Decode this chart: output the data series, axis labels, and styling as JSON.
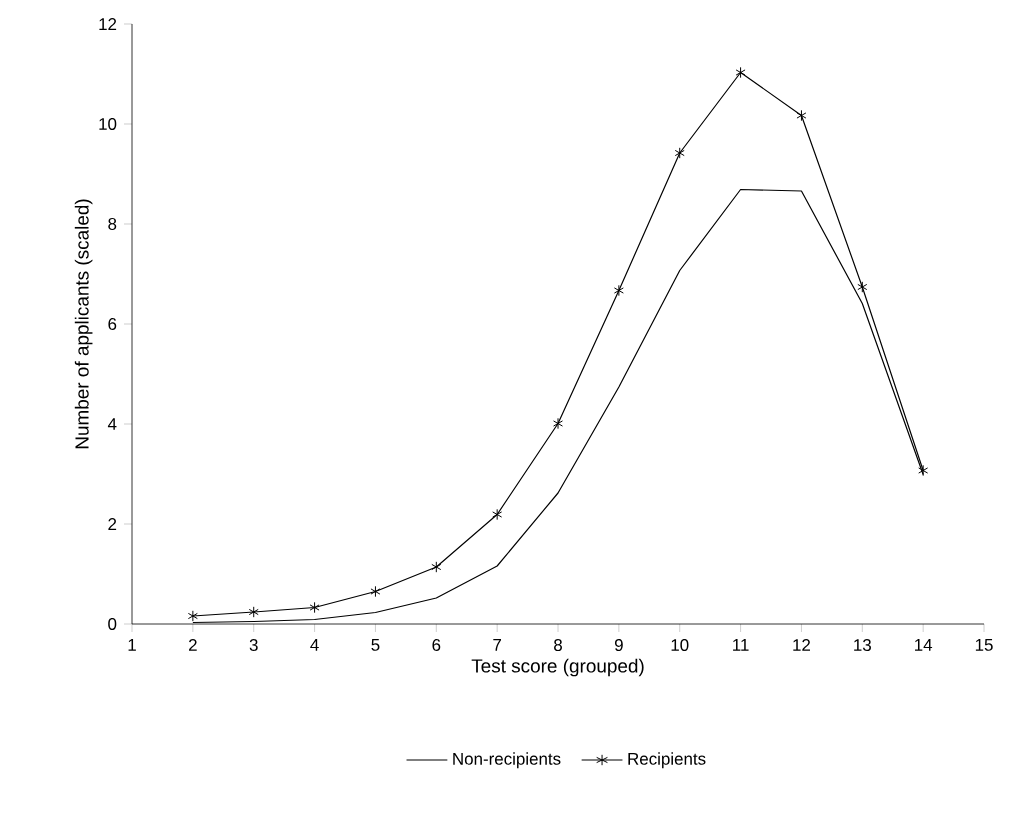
{
  "chart_data": {
    "type": "line",
    "xlabel": "Test score (grouped)",
    "ylabel": "Number of applicants (scaled)",
    "x": [
      2,
      3,
      4,
      5,
      6,
      7,
      8,
      9,
      10,
      11,
      12,
      13,
      14
    ],
    "series": [
      {
        "name": "Non-recipients",
        "color": "#000000",
        "marker": "none",
        "values": [
          0.03,
          0.05,
          0.09,
          0.23,
          0.52,
          1.16,
          2.62,
          4.74,
          7.07,
          8.69,
          8.66,
          6.41,
          2.99
        ]
      },
      {
        "name": "Recipients",
        "color": "#000000",
        "marker": "cross",
        "values": [
          0.16,
          0.24,
          0.33,
          0.65,
          1.14,
          2.19,
          4.01,
          6.67,
          9.42,
          11.03,
          10.17,
          6.74,
          3.07
        ]
      }
    ],
    "xlim": [
      1,
      15
    ],
    "xticks": [
      1,
      2,
      3,
      4,
      5,
      6,
      7,
      8,
      9,
      10,
      11,
      12,
      13,
      14,
      15
    ],
    "ylim": [
      0,
      12
    ],
    "yticks": [
      0,
      2,
      4,
      6,
      8,
      10,
      12
    ],
    "grid": false,
    "legend": "bottom",
    "line_style": "solid"
  }
}
